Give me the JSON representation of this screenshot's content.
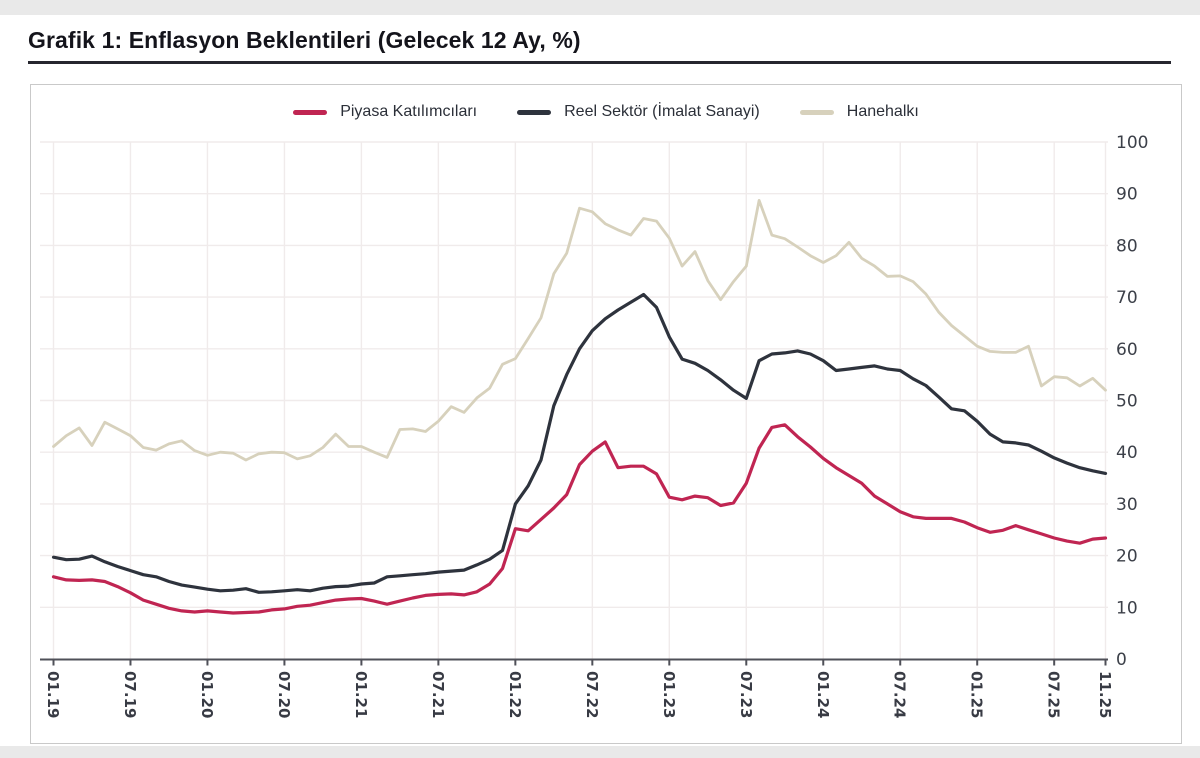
{
  "page": {
    "title": "Grafik 1: Enflasyon Beklentileri (Gelecek 12 Ay, %)"
  },
  "legend": {
    "items": [
      {
        "label": "Piyasa Katılımcıları",
        "color": "#c02552"
      },
      {
        "label": "Reel Sektör (İmalat Sanayi)",
        "color": "#2e333d"
      },
      {
        "label": "Hanehalkı",
        "color": "#d7d1bc"
      }
    ]
  },
  "chart_data": {
    "type": "line",
    "title": "Grafik 1: Enflasyon Beklentileri (Gelecek 12 Ay, %)",
    "unit": "%",
    "x_frequency": "monthly",
    "x_start": "2019-01",
    "x_end": "2025-11",
    "x_tick_labels": [
      "01.19",
      "07.19",
      "01.20",
      "07.20",
      "01.21",
      "07.21",
      "01.22",
      "07.22",
      "01.23",
      "07.23",
      "01.24",
      "07.24",
      "01.25",
      "07.25",
      "11.25"
    ],
    "x_tick_month_indices": [
      0,
      6,
      12,
      18,
      24,
      30,
      36,
      42,
      48,
      54,
      60,
      66,
      72,
      78,
      82
    ],
    "ylim": [
      0,
      100
    ],
    "y_ticks": [
      0,
      10,
      20,
      30,
      40,
      50,
      60,
      70,
      80,
      90,
      100
    ],
    "y_axis_position": "right",
    "grid": "both",
    "legend_position": "top-center",
    "series": [
      {
        "name": "Piyasa Katılımcıları",
        "color": "#c02552",
        "values": [
          15.9,
          15.3,
          15.2,
          15.3,
          15.0,
          14.0,
          12.8,
          11.4,
          10.6,
          9.8,
          9.3,
          9.1,
          9.3,
          9.1,
          8.9,
          9.0,
          9.1,
          9.5,
          9.7,
          10.2,
          10.4,
          10.9,
          11.4,
          11.6,
          11.7,
          11.2,
          10.6,
          11.2,
          11.8,
          12.3,
          12.5,
          12.6,
          12.4,
          13.0,
          14.5,
          17.5,
          25.2,
          24.8,
          27.0,
          29.2,
          31.8,
          37.6,
          40.2,
          42.0,
          37.0,
          37.3,
          37.3,
          35.8,
          31.3,
          30.8,
          31.5,
          31.2,
          29.7,
          30.2,
          34.0,
          40.8,
          44.8,
          45.3,
          43.0,
          41.0,
          38.8,
          37.0,
          35.5,
          34.0,
          31.5,
          30.0,
          28.5,
          27.5,
          27.2,
          27.2,
          27.2,
          26.5,
          25.4,
          24.5,
          24.9,
          25.8,
          25.0,
          24.2,
          23.4,
          22.8,
          22.4,
          23.2,
          23.4
        ]
      },
      {
        "name": "Reel Sektör (İmalat Sanayi)",
        "color": "#2e333d",
        "values": [
          19.7,
          19.2,
          19.3,
          19.9,
          18.8,
          17.9,
          17.1,
          16.3,
          15.9,
          15.0,
          14.3,
          13.9,
          13.5,
          13.2,
          13.3,
          13.6,
          12.9,
          13.0,
          13.2,
          13.4,
          13.2,
          13.7,
          14.0,
          14.1,
          14.5,
          14.7,
          15.9,
          16.1,
          16.3,
          16.5,
          16.8,
          17.0,
          17.2,
          18.2,
          19.3,
          21.0,
          30.0,
          33.5,
          38.5,
          49.0,
          55.0,
          60.0,
          63.5,
          65.8,
          67.5,
          69.0,
          70.5,
          68.0,
          62.3,
          58.0,
          57.2,
          55.8,
          54.0,
          52.0,
          50.4,
          57.7,
          59.0,
          59.2,
          59.6,
          59.0,
          57.7,
          55.8,
          56.1,
          56.4,
          56.7,
          56.1,
          55.8,
          54.2,
          52.9,
          50.7,
          48.4,
          48.0,
          46.0,
          43.5,
          42.0,
          41.8,
          41.4,
          40.2,
          38.9,
          37.9,
          37.0,
          36.4,
          35.9
        ]
      },
      {
        "name": "Hanehalkı",
        "color": "#d7d1bc",
        "values": [
          41.1,
          43.2,
          44.7,
          41.3,
          45.8,
          44.5,
          43.2,
          40.9,
          40.4,
          41.6,
          42.2,
          40.3,
          39.4,
          40.0,
          39.8,
          38.5,
          39.7,
          40.0,
          39.9,
          38.7,
          39.3,
          40.9,
          43.5,
          41.1,
          41.1,
          40.0,
          39.0,
          44.4,
          44.5,
          44.0,
          46.0,
          48.8,
          47.7,
          50.5,
          52.4,
          57.0,
          58.1,
          62.0,
          66.0,
          74.5,
          78.5,
          87.2,
          86.5,
          84.2,
          83.0,
          82.0,
          85.2,
          84.7,
          81.4,
          76.0,
          78.8,
          73.2,
          69.5,
          73.0,
          76.0,
          88.7,
          82.0,
          81.3,
          79.7,
          78.0,
          76.7,
          78.0,
          80.6,
          77.5,
          76.0,
          74.0,
          74.1,
          73.0,
          70.6,
          67.1,
          64.5,
          62.5,
          60.5,
          59.5,
          59.3,
          59.3,
          60.5,
          52.8,
          54.6,
          54.4,
          52.8,
          54.3,
          52.0
        ]
      }
    ]
  }
}
